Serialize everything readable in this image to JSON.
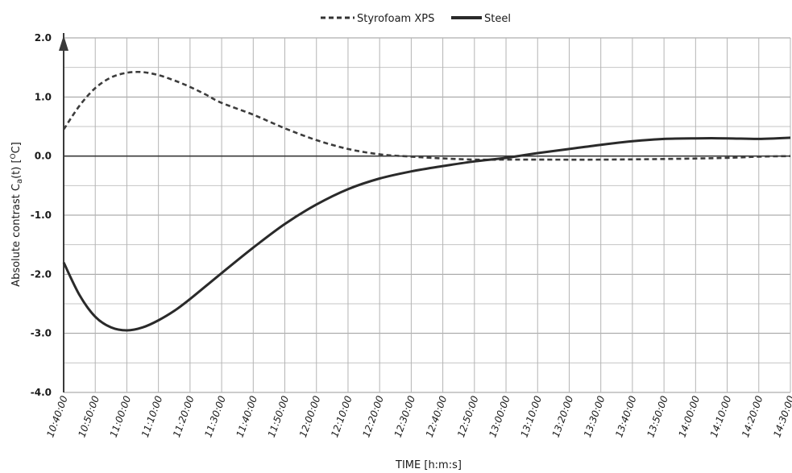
{
  "chart_data": {
    "type": "line",
    "title": "",
    "xlabel": "TIME [h:m:s]",
    "ylabel": "Absolute contrast C",
    "ylabel_sub": "a",
    "ylabel_tail": "(t) [",
    "ylabel_sup": "O",
    "ylabel_end": "C]",
    "ylim": [
      -4.0,
      2.0
    ],
    "y_major_ticks": [
      2.0,
      1.0,
      0.0,
      -1.0,
      -2.0,
      -3.0,
      -4.0
    ],
    "y_tick_labels": [
      "2.0",
      "1.0",
      "0.0",
      "-1.0",
      "-2.0",
      "-3.0",
      "-4.0"
    ],
    "y_minor_step": 0.5,
    "grid": true,
    "legend_position": "top-center",
    "x_tick_labels": [
      "10:40:00",
      "10:50:00",
      "11:00:00",
      "11:10:00",
      "11:20:00",
      "11:30:00",
      "11:40:00",
      "11:50:00",
      "12:00:00",
      "12:10:00",
      "12:20:00",
      "12:30:00",
      "12:40:00",
      "12:50:00",
      "13:00:00",
      "13:10:00",
      "13:20:00",
      "13:30:00",
      "13:40:00",
      "13:50:00",
      "14:00:00",
      "14:10:00",
      "14:20:00",
      "14:30:00"
    ],
    "x_minutes_per_tick": 10,
    "series": [
      {
        "name": "Styrofoam XPS",
        "style": "dashed",
        "x": [
          "10:40:00",
          "10:45:00",
          "10:50:00",
          "10:55:00",
          "11:00:00",
          "11:05:00",
          "11:10:00",
          "11:15:00",
          "11:20:00",
          "11:25:00",
          "11:30:00",
          "11:40:00",
          "11:50:00",
          "12:00:00",
          "12:10:00",
          "12:20:00",
          "12:30:00",
          "12:40:00",
          "12:50:00",
          "13:00:00",
          "13:10:00",
          "13:30:00",
          "13:50:00",
          "14:10:00",
          "14:20:00",
          "14:30:00"
        ],
        "y": [
          0.45,
          0.85,
          1.15,
          1.33,
          1.41,
          1.42,
          1.37,
          1.28,
          1.17,
          1.04,
          0.9,
          0.7,
          0.47,
          0.27,
          0.12,
          0.03,
          -0.01,
          -0.04,
          -0.06,
          -0.06,
          -0.06,
          -0.06,
          -0.05,
          -0.03,
          -0.01,
          0.0
        ]
      },
      {
        "name": "Steel",
        "style": "solid",
        "x": [
          "10:40:00",
          "10:45:00",
          "10:50:00",
          "10:55:00",
          "11:00:00",
          "11:05:00",
          "11:10:00",
          "11:15:00",
          "11:20:00",
          "11:30:00",
          "11:40:00",
          "11:50:00",
          "12:00:00",
          "12:10:00",
          "12:20:00",
          "12:30:00",
          "12:40:00",
          "12:50:00",
          "13:00:00",
          "13:10:00",
          "13:20:00",
          "13:30:00",
          "13:40:00",
          "13:50:00",
          "14:00:00",
          "14:10:00",
          "14:20:00",
          "14:30:00"
        ],
        "y": [
          -1.8,
          -2.35,
          -2.72,
          -2.9,
          -2.95,
          -2.9,
          -2.78,
          -2.62,
          -2.42,
          -1.98,
          -1.55,
          -1.15,
          -0.82,
          -0.56,
          -0.38,
          -0.26,
          -0.17,
          -0.09,
          -0.03,
          0.05,
          0.12,
          0.19,
          0.25,
          0.29,
          0.3,
          0.3,
          0.29,
          0.31
        ]
      }
    ]
  }
}
